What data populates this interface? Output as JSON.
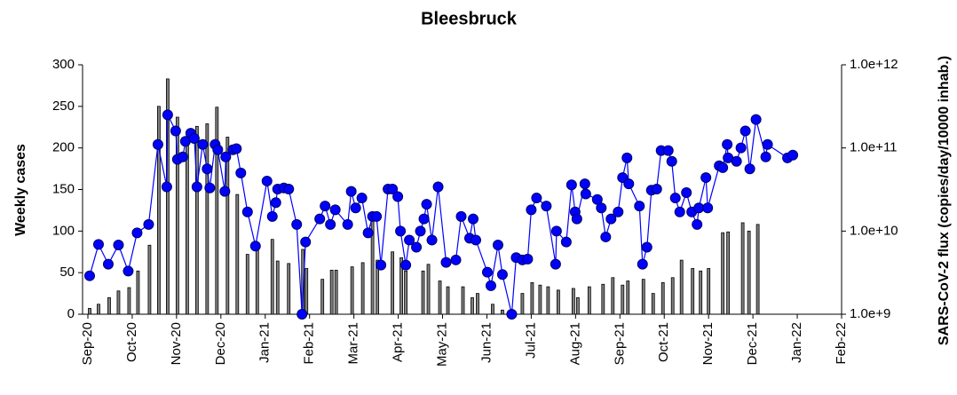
{
  "chart_data": {
    "type": "combo",
    "title": "Bleesbruck",
    "ylabel": "Weekly cases",
    "y2label": "SARS-CoV-2 flux (copies/day/10000 inhab.)",
    "xlim": [
      -0.12,
      17
    ],
    "xticks": [
      {
        "value": 0,
        "label": "Sep-20"
      },
      {
        "value": 1,
        "label": "Oct-20"
      },
      {
        "value": 2,
        "label": "Nov-20"
      },
      {
        "value": 3,
        "label": "Dec-20"
      },
      {
        "value": 4,
        "label": "Jan-21"
      },
      {
        "value": 5,
        "label": "Feb-21"
      },
      {
        "value": 6,
        "label": "Mar-21"
      },
      {
        "value": 7,
        "label": "Apr-21"
      },
      {
        "value": 8,
        "label": "May-21"
      },
      {
        "value": 9,
        "label": "Jun-21"
      },
      {
        "value": 10,
        "label": "Jul-21"
      },
      {
        "value": 11,
        "label": "Aug-21"
      },
      {
        "value": 12,
        "label": "Sep-21"
      },
      {
        "value": 13,
        "label": "Oct-21"
      },
      {
        "value": 14,
        "label": "Nov-21"
      },
      {
        "value": 15,
        "label": "Dec-21"
      },
      {
        "value": 16,
        "label": "Jan-22"
      },
      {
        "value": 17,
        "label": "Feb-22"
      }
    ],
    "ylim": [
      0,
      300
    ],
    "yticks": [
      0,
      50,
      100,
      150,
      200,
      250,
      300
    ],
    "y2lim": [
      1000000000,
      1000000000000
    ],
    "y2scale": "log",
    "y2ticks": [
      {
        "value": 1000000000,
        "label": "1.0e+9"
      },
      {
        "value": 10000000000,
        "label": "1.0e+10"
      },
      {
        "value": 100000000000,
        "label": "1.0e+11"
      },
      {
        "value": 1000000000000,
        "label": "1.0e+12"
      }
    ],
    "series": [
      {
        "type": "bar",
        "axis": "y",
        "color": "#808080",
        "x": [
          0.04,
          0.24,
          0.48,
          0.69,
          0.93,
          1.13,
          1.39,
          1.6,
          1.8,
          2.02,
          2.24,
          2.46,
          2.69,
          2.91,
          3.15,
          3.37,
          3.6,
          3.82,
          4.16,
          4.28,
          4.53,
          4.85,
          4.93,
          5.29,
          5.5,
          5.6,
          5.96,
          6.2,
          6.42,
          6.53,
          6.87,
          7.07,
          7.17,
          7.56,
          7.68,
          7.94,
          8.12,
          8.46,
          8.67,
          8.79,
          9.13,
          9.35,
          9.8,
          10.02,
          10.2,
          10.38,
          10.61,
          10.95,
          11.05,
          11.31,
          11.62,
          11.84,
          12.06,
          12.18,
          12.53,
          12.75,
          12.97,
          13.19,
          13.39,
          13.64,
          13.82,
          14.0,
          14.32,
          14.44,
          14.77,
          14.91,
          15.11
        ],
        "values": [
          7,
          12,
          20,
          28,
          32,
          52,
          83,
          250,
          283,
          237,
          213,
          226,
          229,
          249,
          213,
          144,
          72,
          77,
          90,
          64,
          61,
          78,
          55,
          42,
          53,
          53,
          57,
          62,
          114,
          65,
          75,
          68,
          52,
          52,
          60,
          40,
          33,
          33,
          20,
          25,
          12,
          5,
          25,
          38,
          35,
          33,
          29,
          31,
          20,
          33,
          36,
          44,
          35,
          40,
          42,
          25,
          38,
          44,
          65,
          55,
          52,
          55,
          98,
          99,
          110,
          100,
          108
        ]
      },
      {
        "type": "line",
        "axis": "y2",
        "color": "#0000ff",
        "x": [
          0.04,
          0.24,
          0.46,
          0.69,
          0.91,
          1.11,
          1.37,
          1.58,
          1.78,
          1.8,
          1.98,
          2.02,
          2.14,
          2.2,
          2.32,
          2.4,
          2.46,
          2.59,
          2.69,
          2.75,
          2.87,
          2.93,
          3.09,
          3.11,
          3.27,
          3.35,
          3.45,
          3.6,
          3.78,
          4.04,
          4.16,
          4.24,
          4.28,
          4.42,
          4.53,
          4.71,
          4.83,
          4.91,
          5.23,
          5.35,
          5.47,
          5.58,
          5.86,
          5.94,
          6.04,
          6.18,
          6.32,
          6.42,
          6.51,
          6.61,
          6.77,
          6.87,
          6.99,
          7.05,
          7.17,
          7.25,
          7.41,
          7.5,
          7.58,
          7.64,
          7.76,
          7.9,
          8.08,
          8.3,
          8.42,
          8.61,
          8.69,
          8.75,
          9.01,
          9.09,
          9.25,
          9.35,
          9.56,
          9.66,
          9.8,
          9.92,
          10.0,
          10.12,
          10.34,
          10.55,
          10.57,
          10.79,
          10.91,
          10.99,
          11.03,
          11.21,
          11.23,
          11.49,
          11.58,
          11.68,
          11.8,
          11.96,
          12.06,
          12.16,
          12.2,
          12.44,
          12.51,
          12.61,
          12.71,
          12.83,
          12.93,
          13.09,
          13.17,
          13.25,
          13.35,
          13.5,
          13.62,
          13.74,
          13.78,
          13.94,
          13.98,
          14.24,
          14.32,
          14.42,
          14.44,
          14.63,
          14.73,
          14.83,
          14.93,
          15.07,
          15.29,
          15.33,
          15.78,
          15.9
        ],
        "values": [
          2900000000.0,
          6900000000.0,
          4000000000.0,
          6800000000.0,
          3300000000.0,
          9500000000.0,
          12000000000.0,
          110000000000.0,
          34000000000.0,
          250000000000.0,
          160000000000.0,
          73000000000.0,
          78000000000.0,
          120000000000.0,
          150000000000.0,
          130000000000.0,
          34000000000.0,
          110000000000.0,
          56000000000.0,
          33000000000.0,
          110000000000.0,
          95000000000.0,
          30000000000.0,
          78000000000.0,
          95000000000.0,
          98000000000.0,
          50000000000.0,
          17000000000.0,
          6600000000.0,
          40000000000.0,
          15000000000.0,
          22000000000.0,
          32000000000.0,
          33000000000.0,
          32000000000.0,
          12000000000.0,
          1000000000.0,
          7400000000.0,
          14000000000.0,
          20000000000.0,
          12000000000.0,
          18000000000.0,
          12000000000.0,
          30000000000.0,
          19000000000.0,
          25000000000.0,
          9500000000.0,
          15000000000.0,
          15000000000.0,
          3900000000.0,
          32000000000.0,
          32000000000.0,
          26000000000.0,
          10000000000.0,
          3900000000.0,
          7800000000.0,
          6400000000.0,
          10000000000.0,
          14000000000.0,
          21000000000.0,
          7800000000.0,
          34000000000.0,
          4200000000.0,
          4500000000.0,
          15000000000.0,
          8200000000.0,
          14000000000.0,
          7800000000.0,
          3200000000.0,
          2200000000.0,
          6800000000.0,
          3000000000.0,
          1000000000.0,
          4800000000.0,
          4500000000.0,
          4600000000.0,
          18000000000.0,
          25000000000.0,
          20000000000.0,
          4000000000.0,
          10000000000.0,
          7400000000.0,
          36000000000.0,
          17000000000.0,
          14000000000.0,
          37000000000.0,
          28000000000.0,
          24000000000.0,
          19000000000.0,
          8500000000.0,
          14000000000.0,
          17000000000.0,
          44000000000.0,
          76000000000.0,
          37000000000.0,
          20000000000.0,
          4000000000.0,
          6400000000.0,
          31000000000.0,
          32000000000.0,
          93000000000.0,
          93000000000.0,
          69000000000.0,
          25000000000.0,
          17000000000.0,
          29000000000.0,
          17000000000.0,
          12000000000.0,
          19000000000.0,
          44000000000.0,
          19000000000.0,
          61000000000.0,
          58000000000.0,
          110000000000.0,
          76000000000.0,
          69000000000.0,
          100000000000.0,
          160000000000.0,
          56000000000.0,
          220000000000.0,
          78000000000.0,
          110000000000.0,
          76000000000.0,
          82000000000.0
        ]
      }
    ]
  }
}
